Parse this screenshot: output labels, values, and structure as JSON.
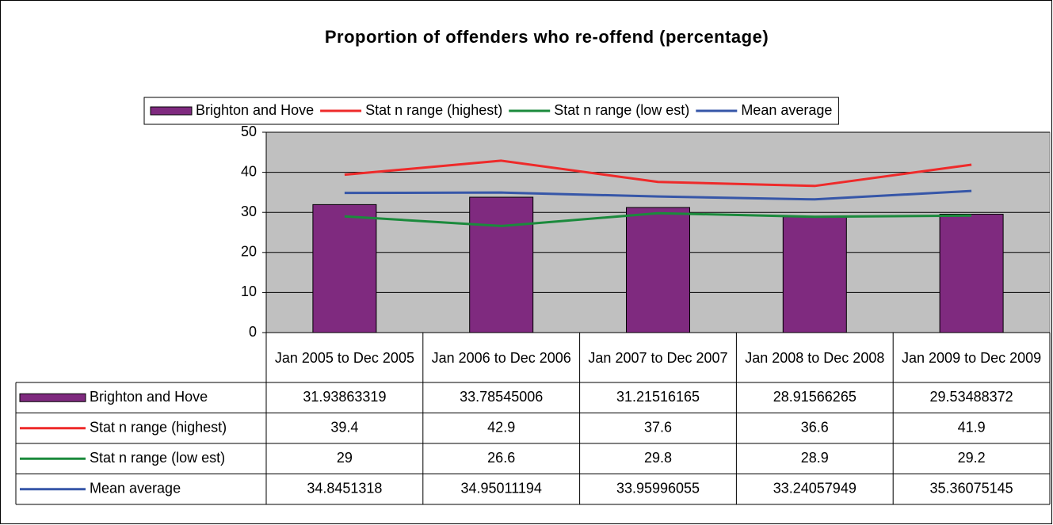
{
  "chart_data": {
    "type": "bar",
    "title": "Proportion of offenders who re-offend (percentage)",
    "categories": [
      "Jan 2005 to Dec 2005",
      "Jan 2006 to Dec 2006",
      "Jan 2007 to Dec 2007",
      "Jan 2008 to Dec 2008",
      "Jan 2009 to Dec 2009"
    ],
    "series": [
      {
        "name": "Brighton and Hove",
        "type": "bar",
        "color": "#7f2a7f",
        "values": [
          31.93863319,
          33.78545006,
          31.21516165,
          28.91566265,
          29.53488372
        ]
      },
      {
        "name": "Stat n range (highest)",
        "type": "line",
        "color": "#ee2a2a",
        "values": [
          39.4,
          42.9,
          37.6,
          36.6,
          41.9
        ]
      },
      {
        "name": "Stat n range (low est)",
        "type": "line",
        "color": "#1b8a3c",
        "values": [
          29,
          26.6,
          29.8,
          28.9,
          29.2
        ]
      },
      {
        "name": "Mean average",
        "type": "line",
        "color": "#3656a8",
        "values": [
          34.8451318,
          34.95011194,
          33.95996055,
          33.24057949,
          35.36075145
        ]
      }
    ],
    "ylim": [
      0,
      50
    ],
    "yticks": [
      0,
      10,
      20,
      30,
      40,
      50
    ],
    "grid": true,
    "data_table": true
  }
}
